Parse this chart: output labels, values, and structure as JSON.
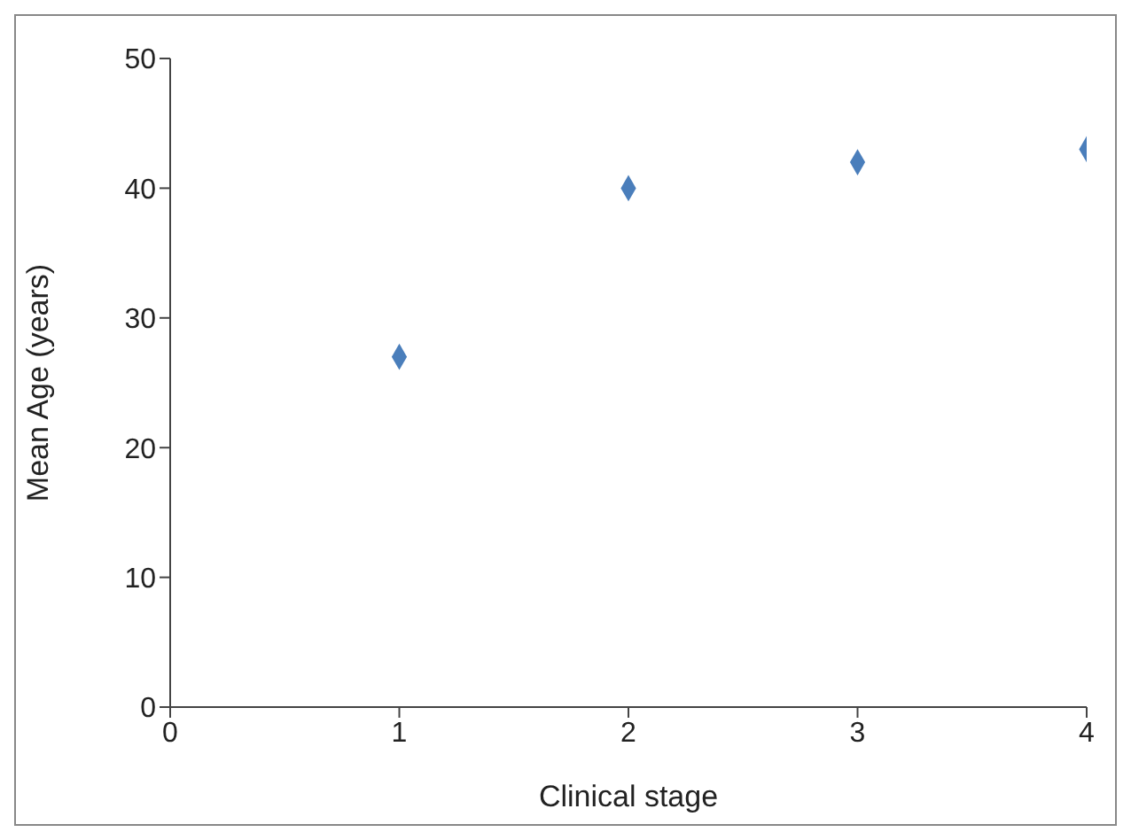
{
  "chart_data": {
    "type": "scatter",
    "xlabel": "Clinical stage",
    "ylabel": "Mean Age (years)",
    "x": [
      1,
      2,
      3,
      4
    ],
    "series": [
      {
        "color": "#4a7ebb",
        "values": [
          27,
          40,
          42,
          43
        ]
      }
    ],
    "xlim": [
      0,
      4
    ],
    "xticks": [
      0,
      1,
      2,
      3,
      4
    ],
    "ylim": [
      0,
      50
    ],
    "yticks": [
      0,
      10,
      20,
      30,
      40,
      50
    ],
    "marker": "diamond",
    "grid": false,
    "legend": false
  }
}
